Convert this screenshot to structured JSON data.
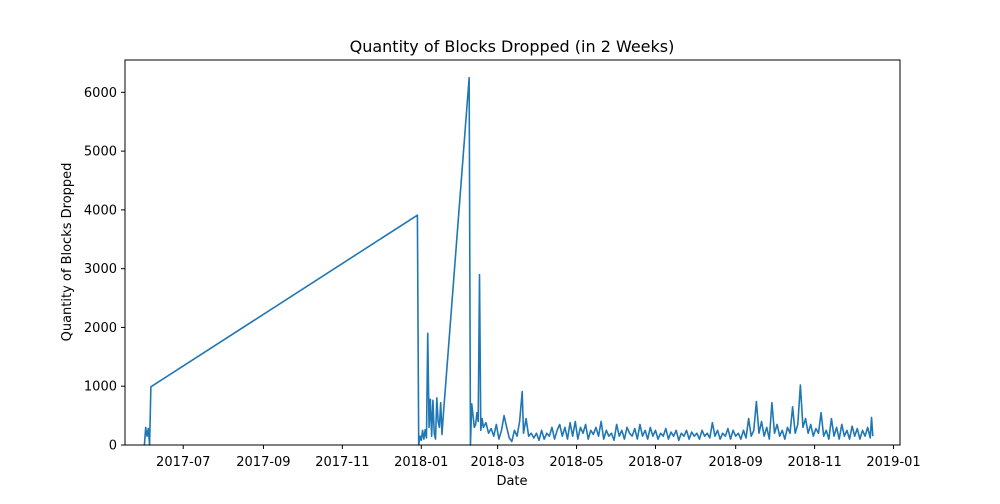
{
  "chart_data": {
    "type": "line",
    "title": "Quantity of Blocks Dropped (in 2 Weeks)",
    "xlabel": "Date",
    "ylabel": "Quantity of Blocks Dropped",
    "x_axis_type": "date",
    "xlim": [
      "2017-05-17",
      "2019-01-06"
    ],
    "ylim": [
      0,
      6550
    ],
    "x_ticks": [
      "2017-07-01",
      "2017-09-01",
      "2017-11-01",
      "2018-01-01",
      "2018-03-01",
      "2018-05-01",
      "2018-07-01",
      "2018-09-01",
      "2018-11-01",
      "2019-01-01"
    ],
    "x_tick_labels": [
      "2017-07",
      "2017-09",
      "2017-11",
      "2018-01",
      "2018-03",
      "2018-05",
      "2018-07",
      "2018-09",
      "2018-11",
      "2019-01"
    ],
    "y_ticks": [
      0,
      1000,
      2000,
      3000,
      4000,
      5000,
      6000
    ],
    "y_tick_labels": [
      "0",
      "1000",
      "2000",
      "3000",
      "4000",
      "5000",
      "6000"
    ],
    "grid": false,
    "series": [
      {
        "color": "#1f77b4",
        "points": [
          [
            "2017-06-01",
            0
          ],
          [
            "2017-06-02",
            300
          ],
          [
            "2017-06-03",
            150
          ],
          [
            "2017-06-04",
            280
          ],
          [
            "2017-06-05",
            0
          ],
          [
            "2017-06-06",
            990
          ],
          [
            "2017-12-29",
            3910
          ],
          [
            "2017-12-30",
            0
          ],
          [
            "2017-12-31",
            150
          ],
          [
            "2018-01-01",
            80
          ],
          [
            "2018-01-02",
            250
          ],
          [
            "2018-01-03",
            100
          ],
          [
            "2018-01-04",
            260
          ],
          [
            "2018-01-05",
            120
          ],
          [
            "2018-01-06",
            1900
          ],
          [
            "2018-01-07",
            300
          ],
          [
            "2018-01-08",
            780
          ],
          [
            "2018-01-09",
            150
          ],
          [
            "2018-01-10",
            760
          ],
          [
            "2018-01-11",
            200
          ],
          [
            "2018-01-12",
            100
          ],
          [
            "2018-01-13",
            800
          ],
          [
            "2018-01-14",
            400
          ],
          [
            "2018-01-15",
            300
          ],
          [
            "2018-01-16",
            720
          ],
          [
            "2018-01-17",
            180
          ],
          [
            "2018-01-18",
            500
          ],
          [
            "2018-02-07",
            6250
          ],
          [
            "2018-02-08",
            0
          ],
          [
            "2018-02-09",
            700
          ],
          [
            "2018-02-10",
            500
          ],
          [
            "2018-02-11",
            300
          ],
          [
            "2018-02-12",
            350
          ],
          [
            "2018-02-13",
            550
          ],
          [
            "2018-02-14",
            400
          ],
          [
            "2018-02-15",
            2900
          ],
          [
            "2018-02-16",
            250
          ],
          [
            "2018-02-17",
            450
          ],
          [
            "2018-02-18",
            300
          ],
          [
            "2018-02-20",
            380
          ],
          [
            "2018-02-22",
            200
          ],
          [
            "2018-02-24",
            280
          ],
          [
            "2018-02-26",
            150
          ],
          [
            "2018-02-28",
            350
          ],
          [
            "2018-03-02",
            100
          ],
          [
            "2018-03-04",
            250
          ],
          [
            "2018-03-06",
            500
          ],
          [
            "2018-03-08",
            300
          ],
          [
            "2018-03-10",
            120
          ],
          [
            "2018-03-12",
            60
          ],
          [
            "2018-03-14",
            250
          ],
          [
            "2018-03-16",
            150
          ],
          [
            "2018-03-18",
            400
          ],
          [
            "2018-03-20",
            910
          ],
          [
            "2018-03-21",
            200
          ],
          [
            "2018-03-23",
            450
          ],
          [
            "2018-03-25",
            150
          ],
          [
            "2018-03-27",
            200
          ],
          [
            "2018-03-29",
            120
          ],
          [
            "2018-03-31",
            200
          ],
          [
            "2018-04-02",
            80
          ],
          [
            "2018-04-04",
            250
          ],
          [
            "2018-04-06",
            100
          ],
          [
            "2018-04-08",
            200
          ],
          [
            "2018-04-10",
            150
          ],
          [
            "2018-04-12",
            300
          ],
          [
            "2018-04-14",
            100
          ],
          [
            "2018-04-16",
            250
          ],
          [
            "2018-04-18",
            350
          ],
          [
            "2018-04-20",
            150
          ],
          [
            "2018-04-22",
            300
          ],
          [
            "2018-04-24",
            100
          ],
          [
            "2018-04-26",
            380
          ],
          [
            "2018-04-28",
            150
          ],
          [
            "2018-04-30",
            400
          ],
          [
            "2018-05-02",
            100
          ],
          [
            "2018-05-04",
            300
          ],
          [
            "2018-05-06",
            200
          ],
          [
            "2018-05-08",
            350
          ],
          [
            "2018-05-10",
            100
          ],
          [
            "2018-05-12",
            250
          ],
          [
            "2018-05-14",
            180
          ],
          [
            "2018-05-16",
            300
          ],
          [
            "2018-05-18",
            150
          ],
          [
            "2018-05-20",
            400
          ],
          [
            "2018-05-22",
            100
          ],
          [
            "2018-05-24",
            250
          ],
          [
            "2018-05-26",
            150
          ],
          [
            "2018-05-28",
            200
          ],
          [
            "2018-05-30",
            80
          ],
          [
            "2018-06-01",
            350
          ],
          [
            "2018-06-03",
            150
          ],
          [
            "2018-06-05",
            250
          ],
          [
            "2018-06-07",
            100
          ],
          [
            "2018-06-09",
            300
          ],
          [
            "2018-06-11",
            200
          ],
          [
            "2018-06-13",
            150
          ],
          [
            "2018-06-15",
            280
          ],
          [
            "2018-06-17",
            100
          ],
          [
            "2018-06-19",
            350
          ],
          [
            "2018-06-21",
            150
          ],
          [
            "2018-06-23",
            250
          ],
          [
            "2018-06-25",
            100
          ],
          [
            "2018-06-27",
            300
          ],
          [
            "2018-06-29",
            150
          ],
          [
            "2018-07-01",
            250
          ],
          [
            "2018-07-03",
            100
          ],
          [
            "2018-07-05",
            200
          ],
          [
            "2018-07-07",
            150
          ],
          [
            "2018-07-09",
            280
          ],
          [
            "2018-07-11",
            100
          ],
          [
            "2018-07-13",
            220
          ],
          [
            "2018-07-15",
            150
          ],
          [
            "2018-07-17",
            250
          ],
          [
            "2018-07-19",
            80
          ],
          [
            "2018-07-21",
            200
          ],
          [
            "2018-07-23",
            150
          ],
          [
            "2018-07-25",
            250
          ],
          [
            "2018-07-27",
            100
          ],
          [
            "2018-07-29",
            220
          ],
          [
            "2018-07-31",
            150
          ],
          [
            "2018-08-02",
            200
          ],
          [
            "2018-08-04",
            100
          ],
          [
            "2018-08-06",
            250
          ],
          [
            "2018-08-08",
            150
          ],
          [
            "2018-08-10",
            200
          ],
          [
            "2018-08-12",
            120
          ],
          [
            "2018-08-14",
            380
          ],
          [
            "2018-08-16",
            150
          ],
          [
            "2018-08-18",
            250
          ],
          [
            "2018-08-20",
            100
          ],
          [
            "2018-08-22",
            200
          ],
          [
            "2018-08-24",
            150
          ],
          [
            "2018-08-26",
            280
          ],
          [
            "2018-08-28",
            100
          ],
          [
            "2018-08-30",
            250
          ],
          [
            "2018-09-01",
            150
          ],
          [
            "2018-09-03",
            200
          ],
          [
            "2018-09-05",
            100
          ],
          [
            "2018-09-07",
            250
          ],
          [
            "2018-09-09",
            120
          ],
          [
            "2018-09-11",
            450
          ],
          [
            "2018-09-13",
            150
          ],
          [
            "2018-09-15",
            250
          ],
          [
            "2018-09-17",
            740
          ],
          [
            "2018-09-19",
            200
          ],
          [
            "2018-09-21",
            400
          ],
          [
            "2018-09-23",
            150
          ],
          [
            "2018-09-25",
            300
          ],
          [
            "2018-09-27",
            100
          ],
          [
            "2018-09-29",
            720
          ],
          [
            "2018-10-01",
            200
          ],
          [
            "2018-10-03",
            350
          ],
          [
            "2018-10-05",
            150
          ],
          [
            "2018-10-07",
            250
          ],
          [
            "2018-10-09",
            100
          ],
          [
            "2018-10-11",
            300
          ],
          [
            "2018-10-13",
            200
          ],
          [
            "2018-10-15",
            650
          ],
          [
            "2018-10-17",
            200
          ],
          [
            "2018-10-19",
            350
          ],
          [
            "2018-10-21",
            1020
          ],
          [
            "2018-10-23",
            300
          ],
          [
            "2018-10-25",
            450
          ],
          [
            "2018-10-27",
            200
          ],
          [
            "2018-10-29",
            350
          ],
          [
            "2018-10-31",
            150
          ],
          [
            "2018-11-02",
            280
          ],
          [
            "2018-11-04",
            200
          ],
          [
            "2018-11-06",
            550
          ],
          [
            "2018-11-08",
            150
          ],
          [
            "2018-11-10",
            250
          ],
          [
            "2018-11-12",
            100
          ],
          [
            "2018-11-14",
            450
          ],
          [
            "2018-11-16",
            150
          ],
          [
            "2018-11-18",
            300
          ],
          [
            "2018-11-20",
            100
          ],
          [
            "2018-11-22",
            350
          ],
          [
            "2018-11-24",
            150
          ],
          [
            "2018-11-26",
            250
          ],
          [
            "2018-11-28",
            100
          ],
          [
            "2018-11-30",
            320
          ],
          [
            "2018-12-02",
            150
          ],
          [
            "2018-12-04",
            280
          ],
          [
            "2018-12-06",
            100
          ],
          [
            "2018-12-08",
            250
          ],
          [
            "2018-12-10",
            150
          ],
          [
            "2018-12-12",
            300
          ],
          [
            "2018-12-14",
            120
          ],
          [
            "2018-12-15",
            470
          ],
          [
            "2018-12-16",
            150
          ]
        ]
      }
    ]
  }
}
